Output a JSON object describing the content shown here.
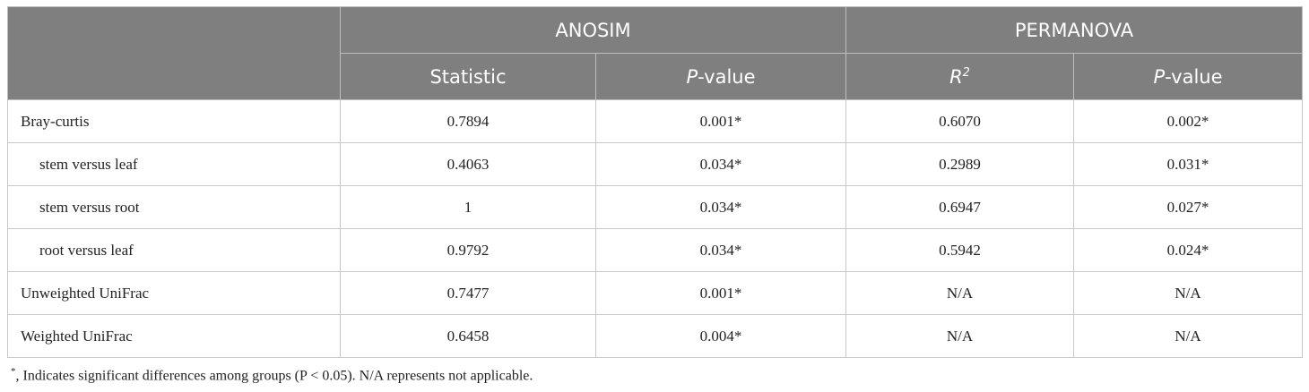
{
  "table": {
    "groups": [
      "ANOSIM",
      "PERMANOVA"
    ],
    "columns": [
      [
        "Statistic"
      ],
      [
        "P",
        "-value"
      ],
      [
        "R",
        "2"
      ],
      [
        "P",
        "-value"
      ]
    ],
    "rows": [
      [
        "Bray-curtis",
        "0.7894",
        "0.001*",
        "0.6070",
        "0.002*"
      ],
      [
        "stem versus leaf",
        "0.4063",
        "0.034*",
        "0.2989",
        "0.031*"
      ],
      [
        "stem versus root",
        "1",
        "0.034*",
        "0.6947",
        "0.027*"
      ],
      [
        "root versus leaf",
        "0.9792",
        "0.034*",
        "0.5942",
        "0.024*"
      ],
      [
        "Unweighted UniFrac",
        "0.7477",
        "0.001*",
        "N/A",
        "N/A"
      ],
      [
        "Weighted UniFrac",
        "0.6458",
        "0.004*",
        "N/A",
        "N/A"
      ]
    ]
  },
  "footnote": [
    "*",
    ", Indicates significant differences among groups (P < 0.05). N/A represents not applicable."
  ]
}
